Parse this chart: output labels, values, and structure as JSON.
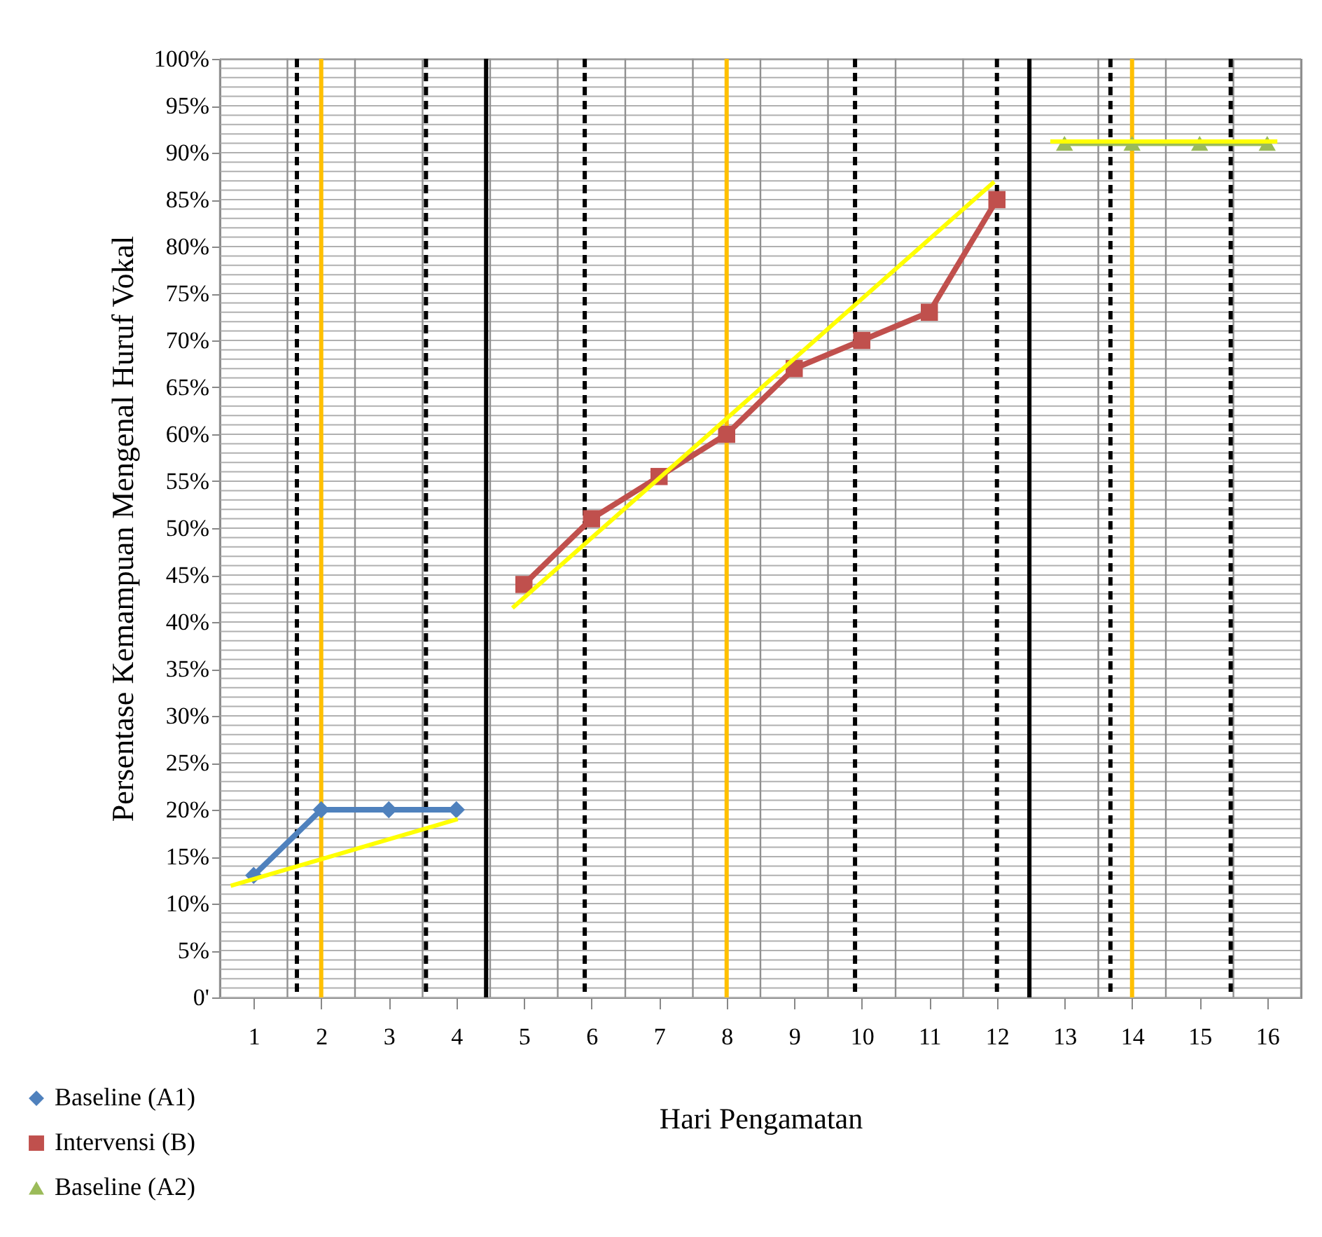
{
  "chart_data": {
    "type": "line",
    "xlabel": "Hari Pengamatan",
    "ylabel": "Persentase  Kemampuan Mengenal Huruf Vokal",
    "xlim": [
      0.5,
      16.5
    ],
    "xticks": [
      1,
      2,
      3,
      4,
      5,
      6,
      7,
      8,
      9,
      10,
      11,
      12,
      13,
      14,
      15,
      16
    ],
    "ylim": [
      0,
      100
    ],
    "yticks": [
      {
        "value": 0,
        "label": "0'"
      },
      {
        "value": 5,
        "label": "5%"
      },
      {
        "value": 10,
        "label": "10%"
      },
      {
        "value": 15,
        "label": "15%"
      },
      {
        "value": 20,
        "label": "20%"
      },
      {
        "value": 25,
        "label": "25%"
      },
      {
        "value": 30,
        "label": "30%"
      },
      {
        "value": 35,
        "label": "35%"
      },
      {
        "value": 40,
        "label": "40%"
      },
      {
        "value": 45,
        "label": "45%"
      },
      {
        "value": 50,
        "label": "50%"
      },
      {
        "value": 55,
        "label": "55%"
      },
      {
        "value": 60,
        "label": "60%"
      },
      {
        "value": 65,
        "label": "65%"
      },
      {
        "value": 70,
        "label": "70%"
      },
      {
        "value": 75,
        "label": "75%"
      },
      {
        "value": 80,
        "label": "80%"
      },
      {
        "value": 85,
        "label": "85%"
      },
      {
        "value": 90,
        "label": "90%"
      },
      {
        "value": 95,
        "label": "95%"
      },
      {
        "value": 100,
        "label": "100%"
      }
    ],
    "grid": true,
    "legend": "bottom left",
    "line_style": "solid",
    "series": [
      {
        "name": "Baseline (A1)",
        "color": "#4f81bd",
        "marker": "diamond",
        "x": [
          1,
          2,
          3,
          4
        ],
        "values": [
          13,
          20,
          20,
          20
        ]
      },
      {
        "name": "Intervensi (B)",
        "color": "#c0504d",
        "marker": "square",
        "x": [
          5,
          6,
          7,
          8,
          9,
          10,
          11,
          12
        ],
        "values": [
          44,
          51,
          55.5,
          60,
          67,
          70,
          73,
          85
        ]
      },
      {
        "name": "Baseline (A2)",
        "color": "#9bbb59",
        "marker": "triangle",
        "x": [
          13,
          14,
          15,
          16
        ],
        "values": [
          91,
          91,
          91,
          91
        ]
      },
      {
        "color": "#ffff00",
        "marker": "none",
        "x": [
          0.66,
          4.02
        ],
        "values": [
          11.9,
          19
        ]
      },
      {
        "color": "#ffff00",
        "marker": "none",
        "x": [
          4.83,
          11.96
        ],
        "values": [
          41.5,
          86.9
        ]
      },
      {
        "color": "#ffff00",
        "marker": "none",
        "x": [
          12.79,
          16.15
        ],
        "values": [
          91.2,
          91.2
        ]
      }
    ],
    "ref_lines": [
      {
        "axis": "x",
        "value": 2,
        "color": "#ffc000",
        "line_style": "solid"
      },
      {
        "axis": "x",
        "value": 8,
        "color": "#ffc000",
        "line_style": "solid"
      },
      {
        "axis": "x",
        "value": 14,
        "color": "#ffc000",
        "line_style": "solid"
      },
      {
        "axis": "x",
        "value": 1.64,
        "color": "#000000",
        "line_style": "dashed"
      },
      {
        "axis": "x",
        "value": 3.55,
        "color": "#000000",
        "line_style": "dashed"
      },
      {
        "axis": "x",
        "value": 5.9,
        "color": "#000000",
        "line_style": "dashed"
      },
      {
        "axis": "x",
        "value": 9.9,
        "color": "#000000",
        "line_style": "dashed"
      },
      {
        "axis": "x",
        "value": 12.0,
        "color": "#000000",
        "line_style": "dashed"
      },
      {
        "axis": "x",
        "value": 13.68,
        "color": "#000000",
        "line_style": "dashed"
      },
      {
        "axis": "x",
        "value": 15.46,
        "color": "#000000",
        "line_style": "dashed"
      },
      {
        "axis": "x",
        "value": 4.44,
        "color": "#000000",
        "line_style": "solid"
      },
      {
        "axis": "x",
        "value": 12.48,
        "color": "#000000",
        "line_style": "solid"
      }
    ]
  }
}
